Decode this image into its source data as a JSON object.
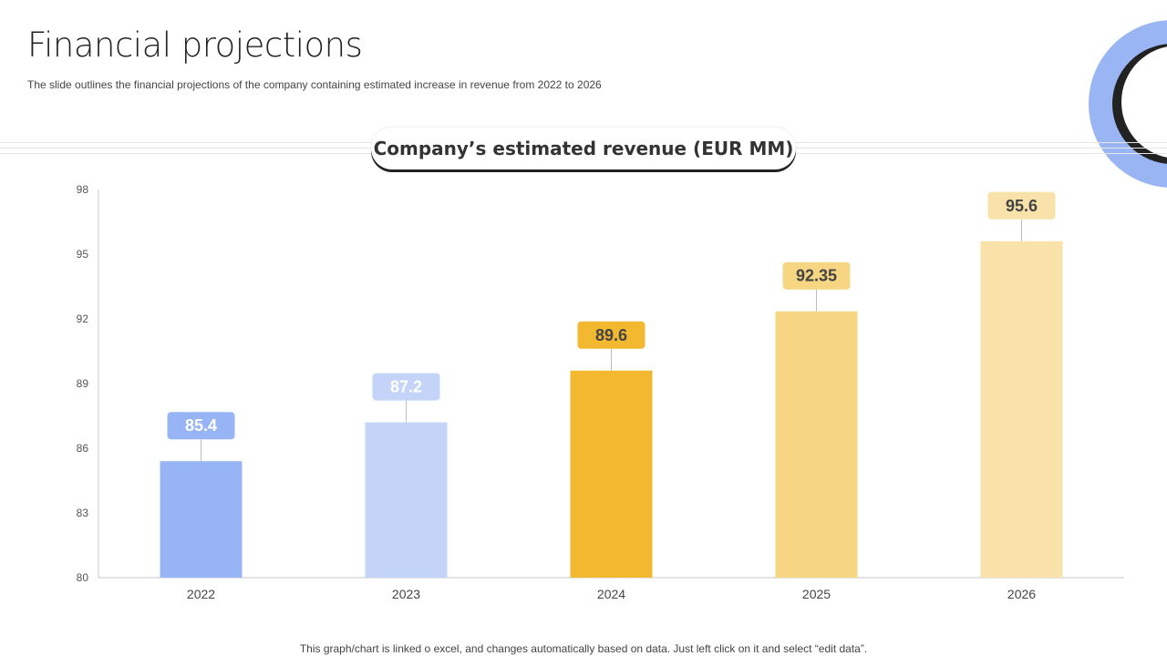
{
  "slide": {
    "title": "Financial projections",
    "subtitle": "The slide outlines the financial projections of the company containing estimated increase in revenue from 2022 to 2026",
    "chart_heading": "Company’s estimated revenue (EUR MM)",
    "footer_note": "This graph/chart is linked o excel, and changes automatically based on data. Just left click on it and select “edit data”."
  },
  "colors": {
    "bar_2022": "#97b5f4",
    "bar_2023": "#c3d4f8",
    "bar_2024": "#f2b82f",
    "bar_2025": "#f6d583",
    "bar_2026": "#f9e2aa",
    "deco_blue": "#9ab5f3",
    "deco_dark": "#222222"
  },
  "chart_data": {
    "type": "bar",
    "title": "Company’s estimated revenue (EUR MM)",
    "categories": [
      "2022",
      "2023",
      "2024",
      "2025",
      "2026"
    ],
    "values": [
      85.4,
      87.2,
      89.6,
      92.35,
      95.6
    ],
    "value_labels": [
      "85.4",
      "87.2",
      "89.6",
      "92.35",
      "95.6"
    ],
    "ylim": [
      80,
      98
    ],
    "yticks": [
      80,
      83,
      86,
      89,
      92,
      95,
      98
    ],
    "xlabel": "",
    "ylabel": "",
    "grid": false,
    "legend": "none"
  }
}
